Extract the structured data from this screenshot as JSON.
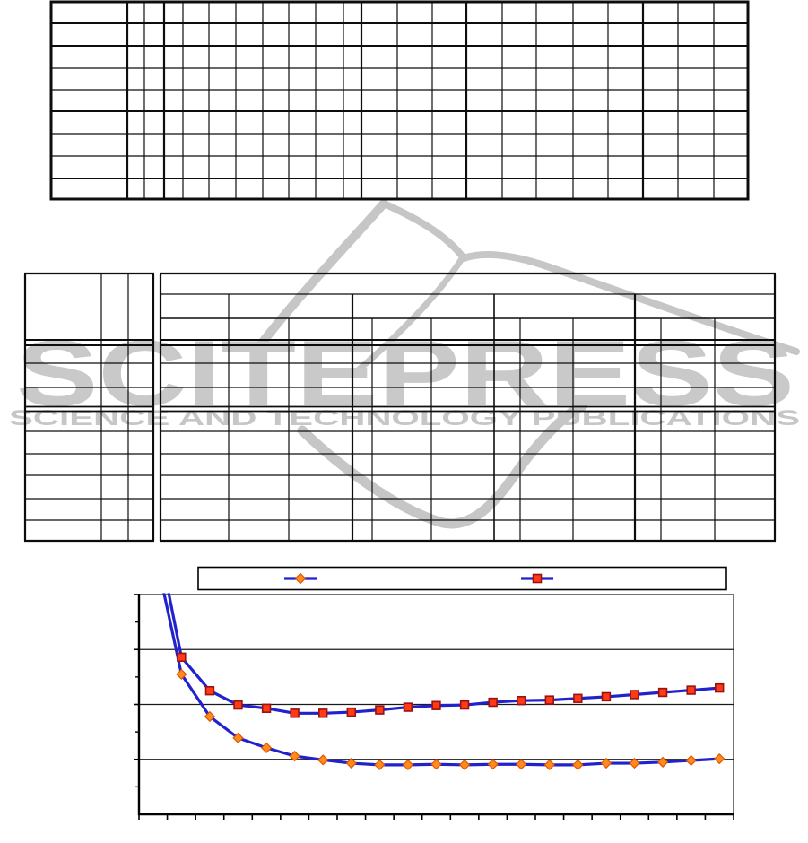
{
  "watermark": {
    "brand": "SCITEPRESS",
    "tagline": "SCIENCE AND TECHNOLOGY PUBLICATIONS",
    "color": "#c8c8c8"
  },
  "tables": {
    "top_table": {
      "rows": 9,
      "columns": 22,
      "content": ""
    },
    "second_table_left_block": {
      "rows": 9,
      "columns": 3,
      "content": ""
    },
    "second_table_right_block": {
      "header_groups": 5,
      "columns": 12,
      "data_rows": 6,
      "content": ""
    }
  },
  "chart_data": {
    "type": "line",
    "title": "",
    "xlabel": "",
    "ylabel": "",
    "x": [
      1,
      2,
      3,
      4,
      5,
      6,
      7,
      8,
      9,
      10,
      11,
      12,
      13,
      14,
      15,
      16,
      17,
      18,
      19,
      20,
      21
    ],
    "ylim": [
      0,
      4
    ],
    "y_gridlines": [
      1,
      2,
      3,
      4
    ],
    "grid": "horizontal-only",
    "legend_position": "top",
    "axis_tick_labels_visible": false,
    "line_color": "#2222cc",
    "series": [
      {
        "name": "series-diamond",
        "marker": "diamond",
        "marker_fill": "#ff8a1e",
        "marker_stroke": "#e05600",
        "values": [
          4.94,
          2.55,
          1.78,
          1.39,
          1.21,
          1.06,
          0.99,
          0.93,
          0.9,
          0.9,
          0.91,
          0.9,
          0.91,
          0.91,
          0.9,
          0.9,
          0.93,
          0.93,
          0.95,
          0.98,
          1.01
        ]
      },
      {
        "name": "series-square",
        "marker": "square",
        "marker_fill": "#ff3a14",
        "marker_stroke": "#991111",
        "values": [
          5.45,
          2.86,
          2.25,
          1.99,
          1.93,
          1.84,
          1.84,
          1.86,
          1.9,
          1.95,
          1.98,
          1.99,
          2.04,
          2.07,
          2.08,
          2.11,
          2.14,
          2.18,
          2.22,
          2.26,
          2.3
        ]
      }
    ]
  }
}
